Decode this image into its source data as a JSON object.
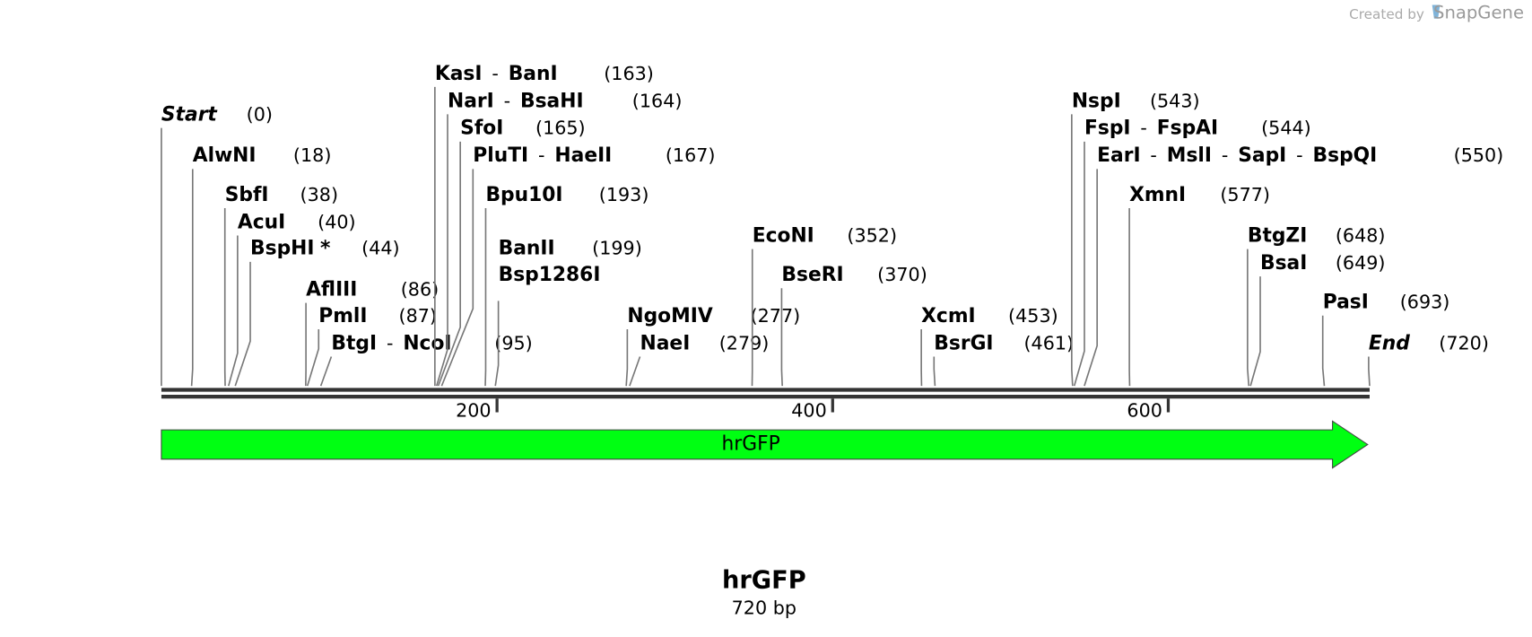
{
  "header": {
    "credit": "Created by",
    "brand": "SnapGene"
  },
  "map": {
    "name": "hrGFP",
    "length": "720 bp",
    "start": 0,
    "end": 720,
    "ticks": [
      200,
      400,
      600
    ],
    "feature": {
      "name": "hrGFP",
      "color": "#00ff12"
    },
    "separator": "-",
    "enzymes": [
      {
        "names": [
          "Start"
        ],
        "position": 0,
        "position_label": "(0)"
      },
      {
        "names": [
          "AlwNI"
        ],
        "position": 18,
        "position_label": "(18)"
      },
      {
        "names": [
          "SbfI"
        ],
        "position": 38,
        "position_label": "(38)"
      },
      {
        "names": [
          "AcuI"
        ],
        "position": 40,
        "position_label": "(40)"
      },
      {
        "names": [
          "BspHI"
        ],
        "note": "*",
        "position": 44,
        "position_label": "(44)"
      },
      {
        "names": [
          "AflIII"
        ],
        "position": 86,
        "position_label": "(86)"
      },
      {
        "names": [
          "PmlI"
        ],
        "position": 87,
        "position_label": "(87)"
      },
      {
        "names": [
          "BtgI",
          "NcoI"
        ],
        "position": 95,
        "position_label": "(95)"
      },
      {
        "names": [
          "KasI",
          "BanI"
        ],
        "position": 163,
        "position_label": "(163)"
      },
      {
        "names": [
          "NarI",
          "BsaHI"
        ],
        "position": 164,
        "position_label": "(164)"
      },
      {
        "names": [
          "SfoI"
        ],
        "position": 165,
        "position_label": "(165)"
      },
      {
        "names": [
          "PluTI",
          "HaeII"
        ],
        "position": 167,
        "position_label": "(167)"
      },
      {
        "names": [
          "Bpu10I"
        ],
        "position": 193,
        "position_label": "(193)"
      },
      {
        "names": [
          "BanII"
        ],
        "also": "Bsp1286I",
        "position": 199,
        "position_label": "(199)"
      },
      {
        "names": [
          "NgoMIV"
        ],
        "position": 277,
        "position_label": "(277)"
      },
      {
        "names": [
          "NaeI"
        ],
        "position": 279,
        "position_label": "(279)"
      },
      {
        "names": [
          "EcoNI"
        ],
        "position": 352,
        "position_label": "(352)"
      },
      {
        "names": [
          "BseRI"
        ],
        "position": 370,
        "position_label": "(370)"
      },
      {
        "names": [
          "XcmI"
        ],
        "position": 453,
        "position_label": "(453)"
      },
      {
        "names": [
          "BsrGI"
        ],
        "position": 461,
        "position_label": "(461)"
      },
      {
        "names": [
          "NspI"
        ],
        "position": 543,
        "position_label": "(543)"
      },
      {
        "names": [
          "FspI",
          "FspAI"
        ],
        "position": 544,
        "position_label": "(544)"
      },
      {
        "names": [
          "EarI",
          "MslI",
          "SapI",
          "BspQI"
        ],
        "position": 550,
        "position_label": "(550)"
      },
      {
        "names": [
          "XmnI"
        ],
        "position": 577,
        "position_label": "(577)"
      },
      {
        "names": [
          "BtgZI"
        ],
        "position": 648,
        "position_label": "(648)"
      },
      {
        "names": [
          "BsaI"
        ],
        "position": 649,
        "position_label": "(649)"
      },
      {
        "names": [
          "PasI"
        ],
        "position": 693,
        "position_label": "(693)"
      },
      {
        "names": [
          "End"
        ],
        "position": 720,
        "position_label": "(720)"
      }
    ]
  }
}
